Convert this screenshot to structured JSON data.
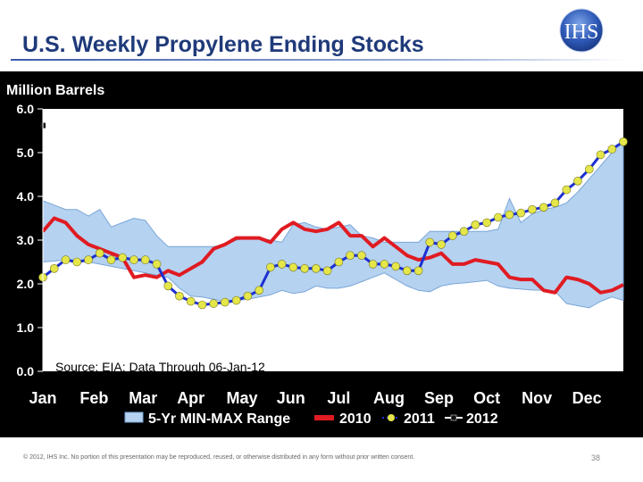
{
  "header": {
    "title": "U.S. Weekly Propylene Ending Stocks",
    "logo_text": "IHS"
  },
  "footer": {
    "copyright": "© 2012, IHS Inc. No portion of this presentation may be reproduced, reused, or otherwise distributed in any form without prior written consent.",
    "page_number": "38"
  },
  "chart_data": {
    "type": "line",
    "title": "",
    "ylabel": "Million Barrels",
    "xlabel": "",
    "ylim": [
      0,
      6
    ],
    "yticks": [
      0,
      1,
      2,
      3,
      4,
      5,
      6
    ],
    "ytick_labels": [
      "0.0",
      "1.0",
      "2.0",
      "3.0",
      "4.0",
      "5.0",
      "6.0"
    ],
    "xlim": [
      1,
      52
    ],
    "months": [
      "Jan",
      "Feb",
      "Mar",
      "Apr",
      "May",
      "Jun",
      "Jul",
      "Aug",
      "Sep",
      "Oct",
      "Nov",
      "Dec"
    ],
    "month_weeks": [
      1,
      5.5,
      9.8,
      14,
      18.5,
      22.8,
      27,
      31.4,
      35.8,
      40,
      44.4,
      48.8
    ],
    "annotation": "Source: EIA:  Data Through 06-Jan-12",
    "grid": false,
    "legend_position": "bottom",
    "colors": {
      "range_fill": "#b5d2f0",
      "range_stroke": "#7aa6d8",
      "s2010": "#e01b22",
      "s2011_line": "#1c2fd1",
      "s2011_marker": "#e4e64a",
      "s2012": "#111111",
      "plot_bg": "#ffffff"
    },
    "range": {
      "name": "5-Yr MIN-MAX Range",
      "weeks": [
        1,
        2,
        3,
        4,
        5,
        6,
        7,
        8,
        9,
        10,
        11,
        12,
        13,
        14,
        15,
        16,
        17,
        18,
        19,
        20,
        21,
        22,
        23,
        24,
        25,
        26,
        27,
        28,
        29,
        30,
        31,
        32,
        33,
        34,
        35,
        36,
        37,
        38,
        39,
        40,
        41,
        42,
        43,
        44,
        45,
        46,
        47,
        48,
        49,
        50,
        51,
        52
      ],
      "min": [
        2.5,
        2.52,
        2.55,
        2.52,
        2.5,
        2.45,
        2.4,
        2.35,
        2.3,
        2.25,
        2.2,
        2.15,
        1.9,
        1.72,
        1.7,
        1.65,
        1.6,
        1.62,
        1.65,
        1.7,
        1.75,
        1.85,
        1.78,
        1.82,
        1.95,
        1.9,
        1.9,
        1.95,
        2.05,
        2.15,
        2.25,
        2.1,
        1.95,
        1.85,
        1.82,
        1.95,
        2.0,
        2.02,
        2.05,
        2.08,
        1.95,
        1.9,
        1.88,
        1.86,
        1.85,
        1.83,
        1.55,
        1.5,
        1.45,
        1.6,
        1.7,
        1.62
      ],
      "max": [
        3.9,
        3.8,
        3.7,
        3.7,
        3.55,
        3.7,
        3.3,
        3.4,
        3.5,
        3.45,
        3.1,
        2.85,
        2.85,
        2.85,
        2.85,
        2.85,
        2.9,
        3.0,
        3.05,
        3.05,
        3.0,
        2.95,
        3.35,
        3.4,
        3.3,
        3.25,
        3.3,
        3.35,
        3.1,
        3.05,
        2.95,
        2.95,
        2.95,
        2.95,
        3.2,
        3.2,
        3.2,
        3.2,
        3.2,
        3.2,
        3.25,
        3.95,
        3.4,
        3.6,
        3.7,
        3.75,
        3.85,
        4.1,
        4.4,
        4.7,
        5.0,
        5.3
      ]
    },
    "series": [
      {
        "name": "2010",
        "x": [
          1,
          2,
          3,
          4,
          5,
          6,
          7,
          8,
          9,
          10,
          11,
          12,
          13,
          14,
          15,
          16,
          17,
          18,
          19,
          20,
          21,
          22,
          23,
          24,
          25,
          26,
          27,
          28,
          29,
          30,
          31,
          32,
          33,
          34,
          35,
          36,
          37,
          38,
          39,
          40,
          41,
          42,
          43,
          44,
          45,
          46,
          47,
          48,
          49,
          50,
          51,
          52
        ],
        "y": [
          3.2,
          3.5,
          3.4,
          3.1,
          2.9,
          2.8,
          2.7,
          2.6,
          2.15,
          2.2,
          2.15,
          2.3,
          2.2,
          2.35,
          2.5,
          2.8,
          2.9,
          3.05,
          3.05,
          3.05,
          2.95,
          3.25,
          3.4,
          3.25,
          3.2,
          3.25,
          3.4,
          3.1,
          3.1,
          2.85,
          3.05,
          2.85,
          2.65,
          2.55,
          2.6,
          2.7,
          2.45,
          2.45,
          2.55,
          2.5,
          2.45,
          2.15,
          2.1,
          2.1,
          1.85,
          1.8,
          2.15,
          2.1,
          2.0,
          1.8,
          1.85,
          1.98
        ]
      },
      {
        "name": "2011",
        "x": [
          1,
          2,
          3,
          4,
          5,
          6,
          7,
          8,
          9,
          10,
          11,
          12,
          13,
          14,
          15,
          16,
          17,
          18,
          19,
          20,
          21,
          22,
          23,
          24,
          25,
          26,
          27,
          28,
          29,
          30,
          31,
          32,
          33,
          34,
          35,
          36,
          37,
          38,
          39,
          40,
          41,
          42,
          43,
          44,
          45,
          46,
          47,
          48,
          49,
          50,
          51,
          52
        ],
        "y": [
          2.15,
          2.35,
          2.55,
          2.5,
          2.55,
          2.7,
          2.55,
          2.6,
          2.55,
          2.55,
          2.45,
          1.95,
          1.72,
          1.6,
          1.52,
          1.55,
          1.58,
          1.62,
          1.72,
          1.85,
          2.38,
          2.45,
          2.38,
          2.35,
          2.35,
          2.3,
          2.5,
          2.65,
          2.65,
          2.45,
          2.45,
          2.4,
          2.3,
          2.3,
          2.95,
          2.9,
          3.1,
          3.2,
          3.35,
          3.4,
          3.52,
          3.58,
          3.62,
          3.7,
          3.75,
          3.85,
          4.15,
          4.35,
          4.62,
          4.95,
          5.08,
          5.25
        ]
      },
      {
        "name": "2012",
        "x": [
          1
        ],
        "y": [
          5.62
        ]
      }
    ]
  }
}
